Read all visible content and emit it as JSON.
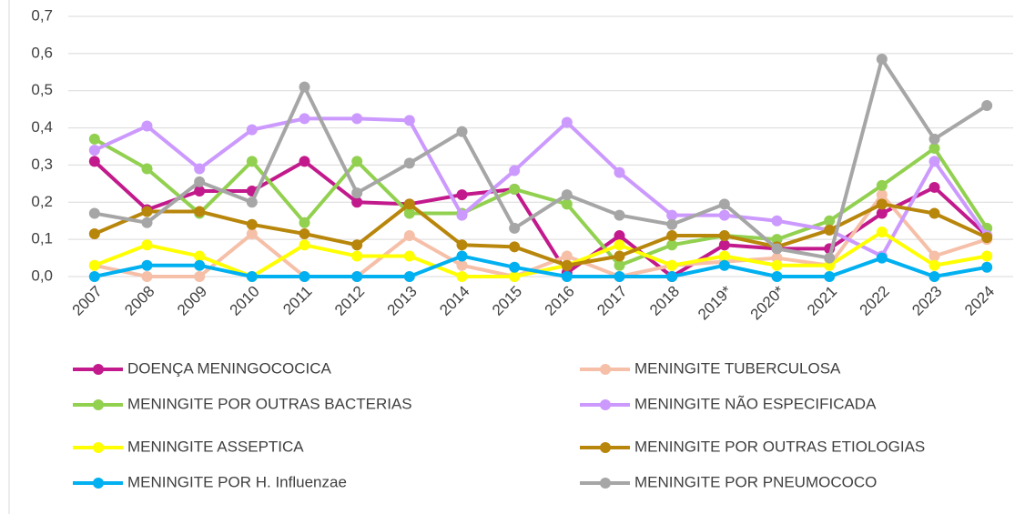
{
  "chart_data": {
    "type": "line",
    "categories": [
      "2007",
      "2008",
      "2009",
      "2010",
      "2011",
      "2012",
      "2013",
      "2014",
      "2015",
      "2016",
      "2017",
      "2018",
      "2019*",
      "2020*",
      "2021",
      "2022",
      "2023",
      "2024"
    ],
    "ylim": [
      0,
      0.7
    ],
    "yticks": [
      {
        "value": 0,
        "label": "0,0"
      },
      {
        "value": 0.1,
        "label": "0,1"
      },
      {
        "value": 0.2,
        "label": "0,2"
      },
      {
        "value": 0.3,
        "label": "0,3"
      },
      {
        "value": 0.4,
        "label": "0,4"
      },
      {
        "value": 0.5,
        "label": "0,5"
      },
      {
        "value": 0.6,
        "label": "0,6"
      },
      {
        "value": 0.7,
        "label": "0,7"
      }
    ],
    "grid": true,
    "series": [
      {
        "name": "DOENÇA MENINGOCOCICA",
        "color": "#c21a8c",
        "values": [
          0.31,
          0.18,
          0.23,
          0.23,
          0.31,
          0.2,
          0.195,
          0.22,
          0.235,
          0.01,
          0.11,
          0.0,
          0.085,
          0.075,
          0.075,
          0.17,
          0.24,
          0.11
        ]
      },
      {
        "name": "MENINGITE TUBERCULOSA",
        "color": "#f6bfa8",
        "values": [
          0.03,
          0.0,
          0.0,
          0.115,
          0.0,
          0.0,
          0.11,
          0.03,
          0.0,
          0.055,
          0.0,
          0.03,
          0.04,
          0.05,
          0.03,
          0.22,
          0.055,
          0.1
        ]
      },
      {
        "name": "MENINGITE POR OUTRAS BACTERIAS",
        "color": "#92d050",
        "values": [
          0.37,
          0.29,
          0.17,
          0.31,
          0.145,
          0.31,
          0.17,
          0.17,
          0.235,
          0.195,
          0.03,
          0.085,
          0.11,
          0.1,
          0.15,
          0.245,
          0.345,
          0.13
        ]
      },
      {
        "name": "MENINGITE NÃO ESPECIFICADA",
        "color": "#cc99ff",
        "values": [
          0.34,
          0.405,
          0.29,
          0.395,
          0.425,
          0.425,
          0.42,
          0.165,
          0.285,
          0.415,
          0.28,
          0.165,
          0.165,
          0.15,
          0.125,
          0.055,
          0.31,
          0.11
        ]
      },
      {
        "name": "MENINGITE ASSEPTICA",
        "color": "#ffff00",
        "values": [
          0.03,
          0.085,
          0.055,
          0.0,
          0.085,
          0.055,
          0.055,
          0.0,
          0.0,
          0.03,
          0.085,
          0.03,
          0.055,
          0.03,
          0.03,
          0.12,
          0.03,
          0.055
        ]
      },
      {
        "name": "MENINGITE POR OUTRAS ETIOLOGIAS",
        "color": "#b8860b",
        "values": [
          0.115,
          0.175,
          0.175,
          0.14,
          0.115,
          0.085,
          0.195,
          0.085,
          0.08,
          0.03,
          0.055,
          0.11,
          0.11,
          0.08,
          0.125,
          0.195,
          0.17,
          0.105
        ]
      },
      {
        "name": "MENINGITE POR H. Influenzae",
        "color": "#00b0f0",
        "values": [
          0,
          0.03,
          0.03,
          0,
          0,
          0,
          0,
          0.055,
          0.025,
          0,
          0,
          0,
          0.03,
          0,
          0,
          0.05,
          0,
          0.025
        ]
      },
      {
        "name": "MENINGITE POR PNEUMOCOCO",
        "color": "#a6a6a6",
        "values": [
          0.17,
          0.145,
          0.255,
          0.2,
          0.51,
          0.225,
          0.305,
          0.39,
          0.13,
          0.22,
          0.165,
          0.14,
          0.195,
          0.075,
          0.05,
          0.585,
          0.37,
          0.46
        ]
      }
    ]
  }
}
